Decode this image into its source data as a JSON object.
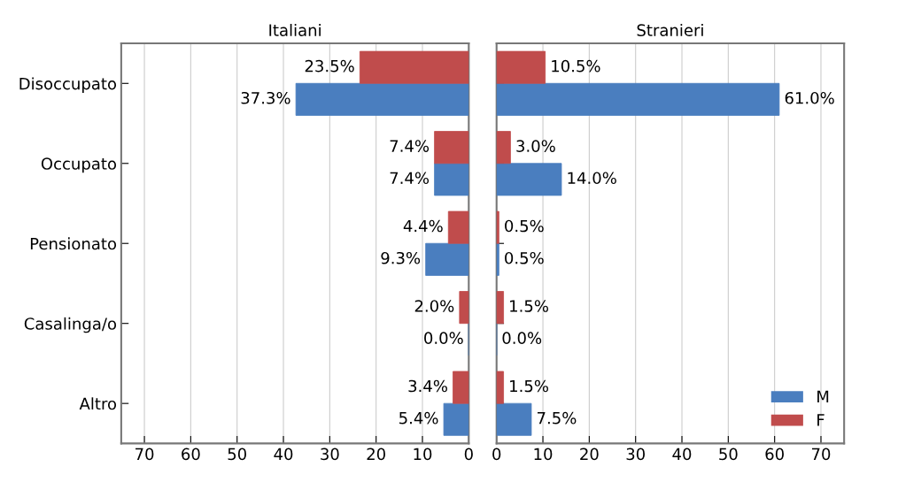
{
  "chart_data": [
    {
      "type": "bar",
      "orientation": "horizontal",
      "title": "Italiani",
      "categories": [
        "Disoccupato",
        "Occupato",
        "Pensionato",
        "Casalinga/o",
        "Altro"
      ],
      "xlim": [
        75,
        0
      ],
      "xticks": [
        70,
        60,
        50,
        40,
        30,
        20,
        10,
        0
      ],
      "grid": "x",
      "series": [
        {
          "color": "#4a7ebf",
          "values": [
            37.3,
            7.4,
            9.3,
            0.0,
            5.4
          ],
          "value_labels": [
            "37.3%",
            "7.4%",
            "9.3%",
            "0.0%",
            "5.4%"
          ]
        },
        {
          "color": "#c04c4c",
          "values": [
            23.5,
            7.4,
            4.4,
            2.0,
            3.4
          ],
          "value_labels": [
            "23.5%",
            "7.4%",
            "4.4%",
            "2.0%",
            "3.4%"
          ]
        }
      ]
    },
    {
      "type": "bar",
      "orientation": "horizontal",
      "title": "Stranieri",
      "categories": [
        null,
        null,
        null,
        null,
        null
      ],
      "xlim": [
        0,
        75
      ],
      "xticks": [
        0,
        10,
        20,
        30,
        40,
        50,
        60,
        70
      ],
      "grid": "x",
      "legend": "bottom right",
      "series": [
        {
          "name": "M",
          "color": "#4a7ebf",
          "values": [
            61.0,
            14.0,
            0.5,
            0.0,
            7.5
          ],
          "value_labels": [
            "61.0%",
            "14.0%",
            "0.5%",
            "0.0%",
            "7.5%"
          ]
        },
        {
          "name": "F",
          "color": "#c04c4c",
          "values": [
            10.5,
            3.0,
            0.5,
            1.5,
            1.5
          ],
          "value_labels": [
            "10.5%",
            "3.0%",
            "0.5%",
            "1.5%",
            "1.5%"
          ]
        }
      ]
    }
  ]
}
